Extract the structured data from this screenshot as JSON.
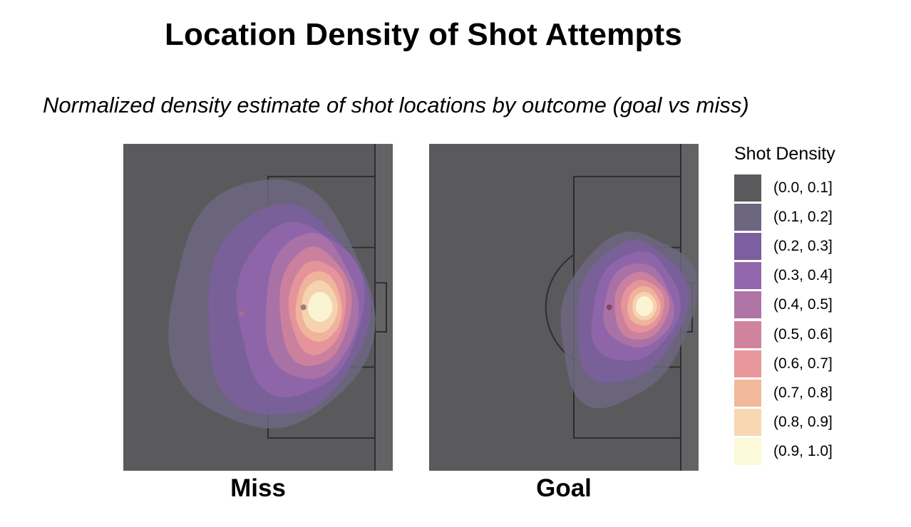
{
  "title": "Location Density of Shot Attempts",
  "subtitle": "Normalized density estimate of shot locations by outcome (goal vs miss)",
  "colors": {
    "pitch": "#5a5a5d",
    "pitch_margin": "#636365",
    "line": "#2e2e30"
  },
  "chart_data": {
    "type": "heatmap",
    "title": "Location Density of Shot Attempts",
    "subtitle": "Normalized density estimate of shot locations by outcome (goal vs miss)",
    "facets": [
      "Miss",
      "Goal"
    ],
    "legend": {
      "title": "Shot Density",
      "position": "right",
      "bins": [
        {
          "label": "(0.0, 0.1]",
          "color": "#5a5a5d"
        },
        {
          "label": "(0.1, 0.2]",
          "color": "#6d6680"
        },
        {
          "label": "(0.2, 0.3]",
          "color": "#7c5f9e"
        },
        {
          "label": "(0.3, 0.4]",
          "color": "#9367ac"
        },
        {
          "label": "(0.4, 0.5]",
          "color": "#ae75a6"
        },
        {
          "label": "(0.5, 0.6]",
          "color": "#d0839c"
        },
        {
          "label": "(0.6, 0.7]",
          "color": "#e8979a"
        },
        {
          "label": "(0.7, 0.8]",
          "color": "#f2b89c"
        },
        {
          "label": "(0.8, 0.9]",
          "color": "#f7d8b3"
        },
        {
          "label": "(0.9, 1.0]",
          "color": "#fbf9d7"
        }
      ]
    },
    "density_peaks": [
      {
        "facet": "Miss",
        "x": 80,
        "y": 50
      },
      {
        "facet": "Goal",
        "x": 83,
        "y": 50
      }
    ],
    "grid": false
  }
}
